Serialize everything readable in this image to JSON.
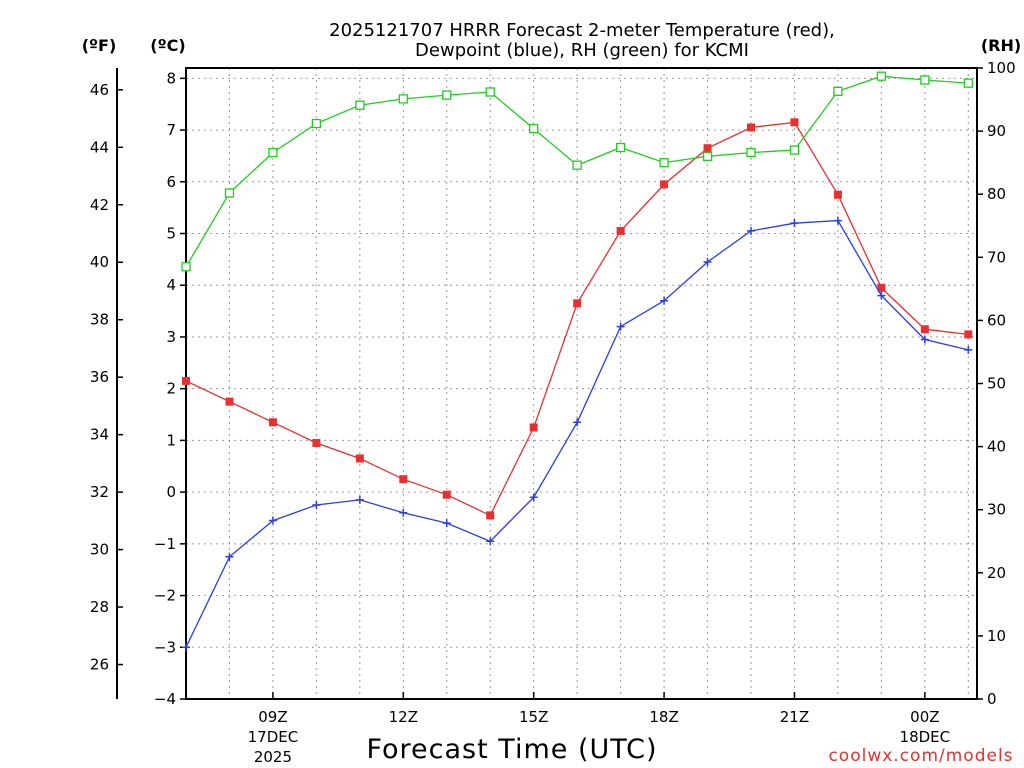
{
  "chart_data": {
    "type": "line",
    "title_line1": "2025121707 HRRR Forecast 2-meter Temperature (red),",
    "title_line2": "Dewpoint (blue), RH (green) for KCMI",
    "xlabel": "Forecast Time (UTC)",
    "ylabel_f": "(ºF)",
    "ylabel_c": "(ºC)",
    "ylabel_rh": "(RH)",
    "credit": "coolwx.com/models",
    "x_hours": [
      7,
      8,
      9,
      10,
      11,
      12,
      13,
      14,
      15,
      16,
      17,
      18,
      19,
      20,
      21,
      22,
      23,
      24,
      25
    ],
    "xlim": [
      7,
      25.2
    ],
    "x_ticks": [
      {
        "x": 9,
        "label1": "09Z",
        "label2": "17DEC",
        "label3": "2025"
      },
      {
        "x": 12,
        "label1": "12Z",
        "label2": "",
        "label3": ""
      },
      {
        "x": 15,
        "label1": "15Z",
        "label2": "",
        "label3": ""
      },
      {
        "x": 18,
        "label1": "18Z",
        "label2": "",
        "label3": ""
      },
      {
        "x": 21,
        "label1": "21Z",
        "label2": "",
        "label3": ""
      },
      {
        "x": 24,
        "label1": "00Z",
        "label2": "18DEC",
        "label3": ""
      }
    ],
    "ylim_c": [
      -4,
      8.2
    ],
    "yticks_c": [
      "8",
      "7",
      "6",
      "5",
      "4",
      "3",
      "2",
      "1",
      "0",
      "−1",
      "−2",
      "−3",
      "−4"
    ],
    "yticks_c_values": [
      8,
      7,
      6,
      5,
      4,
      3,
      2,
      1,
      0,
      -1,
      -2,
      -3,
      -4
    ],
    "yticks_f": [
      "46",
      "44",
      "42",
      "40",
      "38",
      "36",
      "34",
      "32",
      "30",
      "28",
      "26"
    ],
    "yticks_f_values": [
      46,
      44,
      42,
      40,
      38,
      36,
      34,
      32,
      30,
      28,
      26
    ],
    "ylim_rh": [
      0,
      100
    ],
    "yticks_rh": [
      "100",
      "90",
      "80",
      "70",
      "60",
      "50",
      "40",
      "30",
      "20",
      "10",
      "0"
    ],
    "yticks_rh_values": [
      100,
      90,
      80,
      70,
      60,
      50,
      40,
      30,
      20,
      10,
      0
    ],
    "series": [
      {
        "name": "Temperature",
        "axis": "C",
        "color": "#e83030",
        "marker": "filled-square",
        "values": [
          2.15,
          1.75,
          1.35,
          0.95,
          0.65,
          0.25,
          -0.05,
          -0.45,
          1.25,
          3.65,
          5.05,
          5.95,
          6.65,
          7.05,
          7.15,
          5.75,
          3.95,
          3.15,
          3.05
        ]
      },
      {
        "name": "Dewpoint",
        "axis": "C",
        "color": "#2a3fe0",
        "marker": "plus",
        "values": [
          -3.0,
          -1.25,
          -0.55,
          -0.25,
          -0.15,
          -0.4,
          -0.6,
          -0.95,
          -0.1,
          1.35,
          3.2,
          3.7,
          4.45,
          5.05,
          5.2,
          5.25,
          3.8,
          2.95,
          2.75
        ]
      },
      {
        "name": "RH",
        "axis": "RH",
        "color": "#22cc22",
        "marker": "open-square",
        "values": [
          68.5,
          80.2,
          86.6,
          91.2,
          94.1,
          95.1,
          95.7,
          96.2,
          90.4,
          84.6,
          87.4,
          85.0,
          86.0,
          86.6,
          87.0,
          96.3,
          98.7,
          98.1,
          97.6
        ]
      }
    ]
  }
}
